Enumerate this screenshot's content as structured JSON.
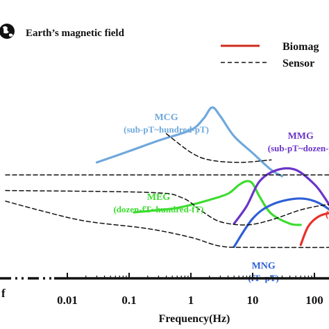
{
  "chart_data": {
    "type": "line",
    "title": "",
    "xlabel": "Frequency(Hz)",
    "ylabel": "",
    "x_scale": "log",
    "xlim": [
      0.001,
      300
    ],
    "x_ticks": [
      {
        "value": 0.01,
        "label": "0.01"
      },
      {
        "value": 0.1,
        "label": "0.1"
      },
      {
        "value": 1,
        "label": "1"
      },
      {
        "value": 10,
        "label": "10"
      },
      {
        "value": 100,
        "label": "100"
      }
    ],
    "x_tick_left_fragment": "f",
    "grid": false,
    "earth_label": "Earth’s magnetic field",
    "legend": {
      "position": "top-right",
      "entries": [
        {
          "label": "Biomag",
          "style": "solid",
          "color": "#cc2b1d"
        },
        {
          "label": "Sensor",
          "style": "dashed",
          "color": "#111111"
        }
      ]
    },
    "series": [
      {
        "name": "MCG",
        "sublabel": "(sub-pT~hundred-pT)",
        "kind": "biomag",
        "color": "#6fa8dc",
        "points": [
          [
            0.03,
            40
          ],
          [
            0.1,
            58
          ],
          [
            0.3,
            75
          ],
          [
            1,
            92
          ],
          [
            1.6,
            110
          ],
          [
            2.2,
            128
          ],
          [
            3,
            114
          ],
          [
            5,
            82
          ],
          [
            10,
            55
          ],
          [
            20,
            28
          ],
          [
            30,
            18
          ]
        ]
      },
      {
        "name": "MEG",
        "sublabel": "(dozen-fT~hundred-fT)",
        "kind": "biomag",
        "color": "#3ddc30",
        "points": [
          [
            0.12,
            -40
          ],
          [
            0.5,
            -34
          ],
          [
            1,
            -28
          ],
          [
            2,
            -20
          ],
          [
            4,
            -10
          ],
          [
            6,
            4
          ],
          [
            8,
            10
          ],
          [
            10,
            6
          ],
          [
            13,
            -15
          ],
          [
            20,
            -42
          ],
          [
            40,
            -58
          ],
          [
            60,
            -60
          ]
        ]
      },
      {
        "name": "MMG",
        "sublabel": "(sub-pT~dozen-p",
        "kind": "biomag",
        "color": "#6a34c8",
        "points": [
          [
            5,
            -58
          ],
          [
            8,
            -30
          ],
          [
            13,
            10
          ],
          [
            25,
            28
          ],
          [
            50,
            28
          ],
          [
            100,
            5
          ],
          [
            150,
            -18
          ],
          [
            200,
            -38
          ]
        ]
      },
      {
        "name": "MNG",
        "sublabel": "(fT~pT)",
        "kind": "biomag",
        "color": "#2e5fd6",
        "points": [
          [
            5,
            -95
          ],
          [
            10,
            -50
          ],
          [
            20,
            -28
          ],
          [
            50,
            -18
          ],
          [
            100,
            -22
          ],
          [
            200,
            -40
          ],
          [
            300,
            -60
          ]
        ]
      },
      {
        "name": "(f",
        "sublabel": "",
        "kind": "biomag",
        "color": "#e8302a",
        "points": [
          [
            60,
            -92
          ],
          [
            80,
            -62
          ],
          [
            120,
            -46
          ],
          [
            200,
            -40
          ],
          [
            300,
            -40
          ]
        ]
      },
      {
        "name": "",
        "sublabel": "",
        "kind": "sensor",
        "color": "#111111",
        "points": [
          [
            0.4,
            86
          ],
          [
            1,
            56
          ],
          [
            2,
            44
          ],
          [
            6,
            40
          ],
          [
            20,
            44
          ]
        ]
      },
      {
        "name": "",
        "sublabel": "",
        "kind": "sensor",
        "color": "#111111",
        "points": [
          [
            0.001,
            -5
          ],
          [
            0.2,
            -8
          ],
          [
            0.7,
            -16
          ],
          [
            1.5,
            -38
          ],
          [
            3,
            -55
          ],
          [
            8,
            -60
          ],
          [
            20,
            -52
          ],
          [
            60,
            -36
          ],
          [
            150,
            -28
          ],
          [
            300,
            -26
          ]
        ]
      },
      {
        "name": "",
        "sublabel": "",
        "kind": "sensor",
        "color": "#111111",
        "points": [
          [
            0.001,
            -22
          ],
          [
            0.004,
            -38
          ],
          [
            0.02,
            -54
          ],
          [
            0.2,
            -66
          ],
          [
            1,
            -80
          ],
          [
            3,
            -94
          ],
          [
            10,
            -96
          ],
          [
            300,
            -96
          ]
        ]
      },
      {
        "name": "",
        "sublabel": "",
        "kind": "sensor",
        "color": "#111111",
        "points": [
          [
            0.001,
            20
          ],
          [
            300,
            20
          ]
        ]
      }
    ],
    "series_label_positions": [
      {
        "series": 0,
        "at": [
          0.4,
          108
        ]
      },
      {
        "series": 1,
        "at": [
          0.3,
          -20
        ]
      },
      {
        "series": 2,
        "at": [
          60,
          78
        ]
      },
      {
        "series": 3,
        "at": [
          15,
          -130
        ]
      },
      {
        "series": 4,
        "at": [
          170,
          -48
        ]
      }
    ]
  }
}
